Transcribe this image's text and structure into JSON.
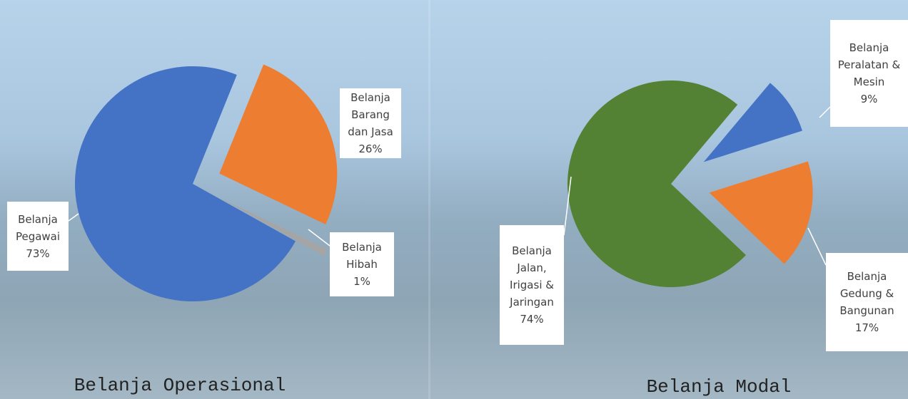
{
  "chart_data": [
    {
      "type": "pie",
      "title": "Belanja Operasional",
      "categories": [
        "Belanja Barang dan Jasa",
        "Belanja Hibah",
        "Belanja Pegawai"
      ],
      "values": [
        26,
        1,
        73
      ],
      "value_labels": [
        "26%",
        "1%",
        "73%"
      ],
      "colors": [
        "#ed7d31",
        "#a5a5a5",
        "#4472c4"
      ]
    },
    {
      "type": "pie",
      "title": "Belanja Modal",
      "categories": [
        "Belanja Peralatan & Mesin",
        "Belanja Gedung & Bangunan",
        "Belanja Jalan, Irigasi & Jaringan"
      ],
      "values": [
        9,
        17,
        74
      ],
      "value_labels": [
        "9%",
        "17%",
        "74%"
      ],
      "colors": [
        "#4472c4",
        "#ed7d31",
        "#548235"
      ]
    }
  ]
}
